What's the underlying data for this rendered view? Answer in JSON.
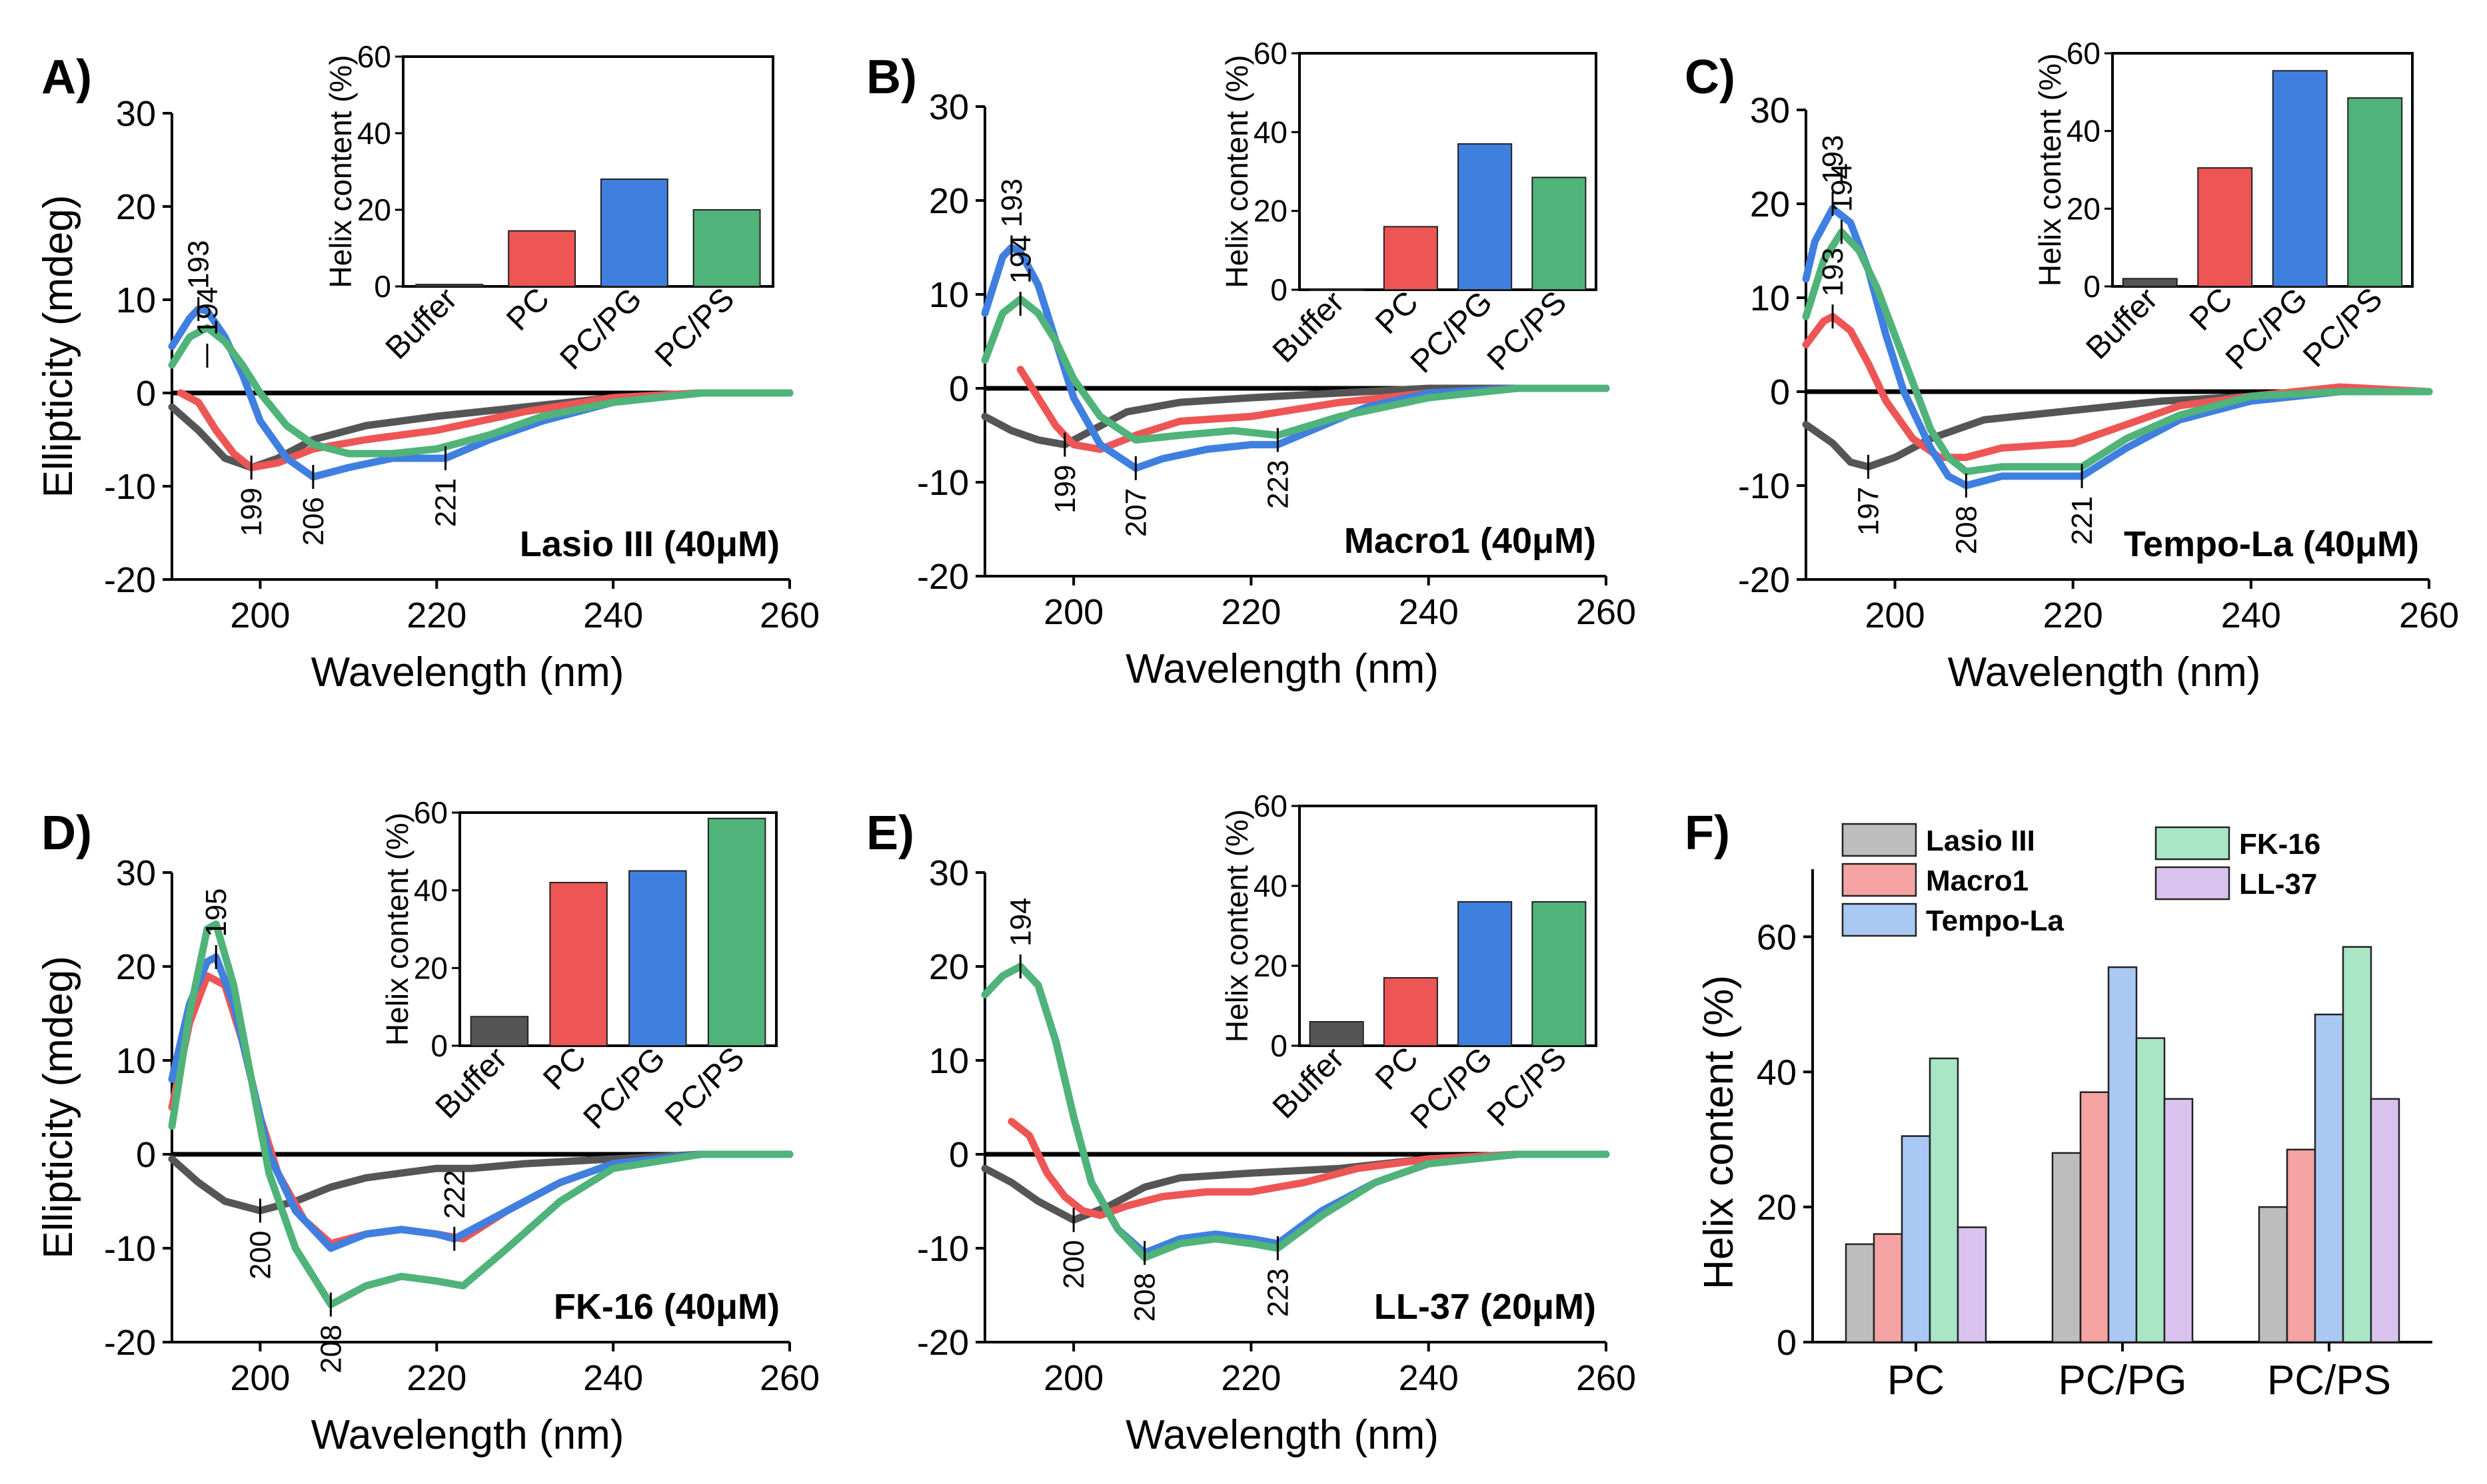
{
  "figure": {
    "colors": {
      "buffer": "#555555",
      "pc": "#ee5555",
      "pcpg": "#3f7fe0",
      "pcps": "#4fb37a",
      "lasio_light": "#bdbdbd",
      "macro_light": "#f5a3a3",
      "tempo_light": "#a9c8f3",
      "fk_light": "#a8e6c5",
      "ll_light": "#d9c3ee"
    },
    "cd_axes": {
      "xlabel": "Wavelength (nm)",
      "ylabel": "Ellipticity (mdeg)",
      "xlim": [
        190,
        260
      ],
      "ylim": [
        -20,
        30
      ],
      "xticks": [
        "200",
        "220",
        "240",
        "260"
      ],
      "yticks": [
        "-20",
        "-10",
        "0",
        "10",
        "20",
        "30"
      ]
    },
    "inset_axes": {
      "ylabel": "Helix content (%)",
      "ylim": [
        0,
        60
      ],
      "yticks": [
        "0",
        "20",
        "40",
        "60"
      ],
      "categories": [
        "Buffer",
        "PC",
        "PC/PG",
        "PC/PS"
      ]
    }
  },
  "chart_data": [
    {
      "id": "A",
      "panel_label": "A)",
      "type": "line",
      "title": "Lasio III (40μM)",
      "xlabel": "Wavelength (nm)",
      "ylabel": "Ellipticity (mdeg)",
      "xlim": [
        190,
        260
      ],
      "ylim": [
        -20,
        30
      ],
      "series": [
        {
          "name": "Buffer",
          "x": [
            190,
            193,
            196,
            199,
            202,
            206,
            212,
            220,
            230,
            240,
            250,
            260
          ],
          "y": [
            -1.5,
            -4,
            -7,
            -8,
            -7,
            -5,
            -3.5,
            -2.5,
            -1.5,
            -0.5,
            0,
            0
          ]
        },
        {
          "name": "PC",
          "x": [
            191,
            193,
            195,
            197,
            199,
            202,
            206,
            212,
            220,
            230,
            240,
            250,
            260
          ],
          "y": [
            0,
            -1,
            -4,
            -6.5,
            -8,
            -7.5,
            -6,
            -5,
            -4,
            -2,
            -0.5,
            0,
            0
          ]
        },
        {
          "name": "PC/PG",
          "x": [
            190,
            192,
            193,
            194,
            196,
            198,
            200,
            203,
            206,
            210,
            215,
            221,
            226,
            232,
            240,
            250,
            260
          ],
          "y": [
            5,
            8,
            9,
            8.8,
            6,
            2,
            -3,
            -7,
            -9,
            -8,
            -7,
            -7,
            -5,
            -3,
            -1,
            0,
            0
          ]
        },
        {
          "name": "PC/PS",
          "x": [
            190,
            192,
            194,
            196,
            198,
            200,
            203,
            206,
            210,
            215,
            220,
            226,
            232,
            240,
            250,
            260
          ],
          "y": [
            3,
            6,
            7,
            5.5,
            3,
            0,
            -3.5,
            -5.5,
            -6.5,
            -6.5,
            -6,
            -4.5,
            -2.5,
            -1,
            0,
            0
          ]
        }
      ],
      "annotations": [
        "193",
        "194",
        "199",
        "206",
        "221"
      ],
      "inset": {
        "categories": [
          "Buffer",
          "PC",
          "PC/PG",
          "PC/PS"
        ],
        "values": [
          0.5,
          14.5,
          28,
          20
        ],
        "ylabel": "Helix content (%)",
        "ylim": [
          0,
          60
        ]
      }
    },
    {
      "id": "B",
      "panel_label": "B)",
      "type": "line",
      "title": "Macro1 (40μM)",
      "xlabel": "Wavelength (nm)",
      "ylabel": "Ellipticity (mdeg)",
      "xlim": [
        190,
        260
      ],
      "ylim": [
        -20,
        30
      ],
      "series": [
        {
          "name": "Buffer",
          "x": [
            190,
            193,
            196,
            199,
            202,
            206,
            212,
            220,
            230,
            240,
            250,
            260
          ],
          "y": [
            -3,
            -4.5,
            -5.5,
            -6,
            -4.5,
            -2.5,
            -1.5,
            -1,
            -0.5,
            0,
            0,
            0
          ]
        },
        {
          "name": "PC",
          "x": [
            194,
            196,
            198,
            200,
            203,
            207,
            212,
            220,
            230,
            240,
            250,
            260
          ],
          "y": [
            2,
            -1,
            -4,
            -6,
            -6.5,
            -5,
            -3.5,
            -3,
            -1.5,
            -0.5,
            0,
            0
          ]
        },
        {
          "name": "PC/PG",
          "x": [
            190,
            192,
            193,
            194,
            196,
            198,
            200,
            203,
            207,
            210,
            215,
            220,
            223,
            228,
            233,
            240,
            250,
            260
          ],
          "y": [
            8,
            14,
            15,
            14.5,
            11,
            5,
            -1,
            -6,
            -8.5,
            -7.5,
            -6.5,
            -6,
            -6,
            -4,
            -2,
            -0.5,
            0,
            0
          ]
        },
        {
          "name": "PC/PS",
          "x": [
            190,
            192,
            194,
            196,
            198,
            200,
            203,
            207,
            212,
            218,
            223,
            230,
            240,
            250,
            260
          ],
          "y": [
            3,
            8,
            9.5,
            8,
            5,
            1,
            -3,
            -5.5,
            -5,
            -4.5,
            -5,
            -3,
            -1,
            0,
            0
          ]
        }
      ],
      "annotations": [
        "193",
        "194",
        "199",
        "207",
        "223"
      ],
      "inset": {
        "categories": [
          "Buffer",
          "PC",
          "PC/PG",
          "PC/PS"
        ],
        "values": [
          0,
          16,
          37,
          28.5
        ],
        "ylabel": "Helix content (%)",
        "ylim": [
          0,
          60
        ]
      }
    },
    {
      "id": "C",
      "panel_label": "C)",
      "type": "line",
      "title": "Tempo-La (40μM)",
      "xlabel": "Wavelength (nm)",
      "ylabel": "Ellipticity (mdeg)",
      "xlim": [
        190,
        260
      ],
      "ylim": [
        -20,
        30
      ],
      "series": [
        {
          "name": "Buffer",
          "x": [
            190,
            193,
            195,
            197,
            200,
            204,
            210,
            220,
            230,
            240,
            250,
            260
          ],
          "y": [
            -3.5,
            -5.5,
            -7.5,
            -8,
            -7,
            -5,
            -3,
            -2,
            -1,
            -0.5,
            0,
            0
          ]
        },
        {
          "name": "PC",
          "x": [
            190,
            192,
            193,
            195,
            197,
            199,
            202,
            205,
            208,
            212,
            220,
            226,
            232,
            240,
            250,
            260
          ],
          "y": [
            5,
            7.5,
            8,
            6.5,
            3,
            -1,
            -5,
            -7,
            -7,
            -6,
            -5.5,
            -3.5,
            -1.5,
            -0.5,
            0.5,
            0
          ]
        },
        {
          "name": "PC/PG",
          "x": [
            190,
            191,
            193,
            195,
            197,
            199,
            201,
            204,
            206,
            208,
            212,
            216,
            221,
            226,
            232,
            240,
            250,
            260
          ],
          "y": [
            12,
            16,
            19.5,
            18,
            13,
            6,
            0,
            -6,
            -9,
            -10,
            -9,
            -9,
            -9,
            -6,
            -3,
            -1,
            0,
            0
          ]
        },
        {
          "name": "PC/PS",
          "x": [
            190,
            192,
            194,
            196,
            198,
            200,
            202,
            204,
            206,
            208,
            212,
            216,
            221,
            226,
            232,
            240,
            250,
            260
          ],
          "y": [
            8,
            14,
            17,
            15,
            11,
            6,
            1,
            -4,
            -7,
            -8.5,
            -8,
            -8,
            -8,
            -5,
            -2.5,
            -0.5,
            0,
            0
          ]
        }
      ],
      "annotations": [
        "193",
        "194",
        "193",
        "197",
        "208",
        "221"
      ],
      "inset": {
        "categories": [
          "Buffer",
          "PC",
          "PC/PG",
          "PC/PS"
        ],
        "values": [
          2,
          30.5,
          55.5,
          48.5
        ],
        "ylabel": "Helix content (%)",
        "ylim": [
          0,
          60
        ]
      }
    },
    {
      "id": "D",
      "panel_label": "D)",
      "type": "line",
      "title": "FK-16 (40μM)",
      "xlabel": "Wavelength (nm)",
      "ylabel": "Ellipticity (mdeg)",
      "xlim": [
        190,
        260
      ],
      "ylim": [
        -20,
        30
      ],
      "series": [
        {
          "name": "Buffer",
          "x": [
            190,
            193,
            196,
            200,
            204,
            208,
            212,
            216,
            220,
            224,
            230,
            240,
            250,
            260
          ],
          "y": [
            -0.5,
            -3,
            -5,
            -6,
            -5,
            -3.5,
            -2.5,
            -2,
            -1.5,
            -1.5,
            -1,
            -0.5,
            0,
            0
          ]
        },
        {
          "name": "PC",
          "x": [
            190,
            192,
            194,
            196,
            198,
            200,
            202,
            205,
            208,
            212,
            216,
            220,
            223,
            228,
            234,
            240,
            250,
            260
          ],
          "y": [
            5,
            14,
            19,
            18,
            12,
            4,
            -2,
            -7,
            -9.5,
            -8.5,
            -8,
            -8.5,
            -9,
            -6,
            -3,
            -1,
            0,
            0
          ]
        },
        {
          "name": "PC/PG",
          "x": [
            190,
            192,
            194,
            195,
            197,
            199,
            201,
            204,
            208,
            212,
            216,
            220,
            222,
            228,
            234,
            240,
            250,
            260
          ],
          "y": [
            8,
            16,
            20.5,
            21,
            16,
            8,
            0,
            -6,
            -10,
            -8.5,
            -8,
            -8.5,
            -9,
            -6,
            -3,
            -1,
            0,
            0
          ]
        },
        {
          "name": "PC/PS",
          "x": [
            190,
            192,
            194,
            195,
            197,
            199,
            201,
            204,
            208,
            212,
            216,
            220,
            223,
            228,
            234,
            240,
            250,
            260
          ],
          "y": [
            3,
            15,
            24,
            24.5,
            18,
            8,
            -2,
            -10,
            -16,
            -14,
            -13,
            -13.5,
            -14,
            -10,
            -5,
            -1.5,
            0,
            0
          ]
        }
      ],
      "annotations": [
        "195",
        "200",
        "208",
        "222"
      ],
      "inset": {
        "categories": [
          "Buffer",
          "PC",
          "PC/PG",
          "PC/PS"
        ],
        "values": [
          7.5,
          42,
          45,
          58.5
        ],
        "ylabel": "Helix content (%)",
        "ylim": [
          0,
          60
        ]
      }
    },
    {
      "id": "E",
      "panel_label": "E)",
      "type": "line",
      "title": "LL-37 (20μM)",
      "xlabel": "Wavelength (nm)",
      "ylabel": "Ellipticity (mdeg)",
      "xlim": [
        190,
        260
      ],
      "ylim": [
        -20,
        30
      ],
      "series": [
        {
          "name": "Buffer",
          "x": [
            190,
            193,
            196,
            200,
            204,
            208,
            212,
            220,
            230,
            240,
            250,
            260
          ],
          "y": [
            -1.5,
            -3,
            -5,
            -7,
            -5.5,
            -3.5,
            -2.5,
            -2,
            -1.5,
            -0.5,
            0,
            0
          ]
        },
        {
          "name": "PC",
          "x": [
            193,
            195,
            197,
            199,
            201,
            203,
            206,
            210,
            215,
            220,
            226,
            232,
            240,
            250,
            260
          ],
          "y": [
            3.5,
            2,
            -2,
            -4.5,
            -6,
            -6.5,
            -5.5,
            -4.5,
            -4,
            -4,
            -3,
            -1.5,
            -0.5,
            0,
            0
          ]
        },
        {
          "name": "PC/PG",
          "x": [
            190,
            192,
            194,
            196,
            198,
            200,
            202,
            205,
            208,
            212,
            216,
            220,
            223,
            228,
            234,
            240,
            250,
            260
          ],
          "y": [
            17,
            19,
            20,
            18,
            12,
            4,
            -3,
            -8,
            -10.5,
            -9,
            -8.5,
            -9,
            -9.5,
            -6,
            -3,
            -1,
            0,
            0
          ]
        },
        {
          "name": "PC/PS",
          "x": [
            190,
            192,
            194,
            196,
            198,
            200,
            202,
            205,
            208,
            212,
            216,
            220,
            223,
            228,
            234,
            240,
            250,
            260
          ],
          "y": [
            17,
            19,
            20,
            18,
            12,
            4,
            -3,
            -8,
            -11,
            -9.5,
            -9,
            -9.5,
            -10,
            -6.5,
            -3,
            -1,
            0,
            0
          ]
        }
      ],
      "annotations": [
        "194",
        "200",
        "208",
        "223"
      ],
      "inset": {
        "categories": [
          "Buffer",
          "PC",
          "PC/PG",
          "PC/PS"
        ],
        "values": [
          6,
          17,
          36,
          36
        ],
        "ylabel": "Helix content (%)",
        "ylim": [
          0,
          60
        ]
      }
    },
    {
      "id": "F",
      "panel_label": "F)",
      "type": "bar",
      "categories": [
        "PC",
        "PC/PG",
        "PC/PS"
      ],
      "ylabel": "Helix content (%)",
      "ylim": [
        0,
        70
      ],
      "yticks": [
        "0",
        "20",
        "40",
        "60"
      ],
      "series": [
        {
          "name": "Lasio III",
          "values": [
            14.5,
            28,
            20
          ]
        },
        {
          "name": "Macro1",
          "values": [
            16,
            37,
            28.5
          ]
        },
        {
          "name": "Tempo-La",
          "values": [
            30.5,
            55.5,
            48.5
          ]
        },
        {
          "name": "FK-16",
          "values": [
            42,
            45,
            58.5
          ]
        },
        {
          "name": "LL-37",
          "values": [
            17,
            36,
            36
          ]
        }
      ]
    }
  ]
}
